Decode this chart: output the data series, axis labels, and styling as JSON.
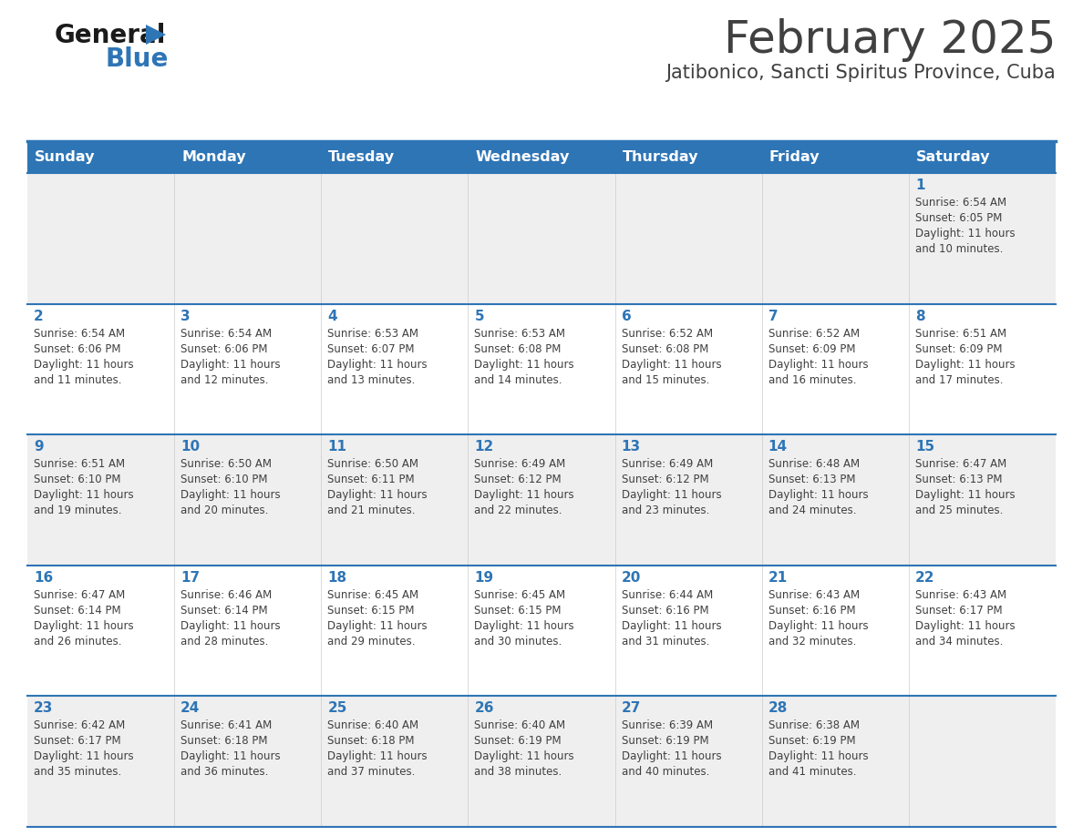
{
  "title": "February 2025",
  "subtitle": "Jatibonico, Sancti Spiritus Province, Cuba",
  "days_of_week": [
    "Sunday",
    "Monday",
    "Tuesday",
    "Wednesday",
    "Thursday",
    "Friday",
    "Saturday"
  ],
  "header_bg": "#2E75B6",
  "header_text_color": "#FFFFFF",
  "cell_bg_gray": "#EFEFEF",
  "cell_bg_white": "#FFFFFF",
  "border_color": "#2E75B6",
  "title_color": "#404040",
  "subtitle_color": "#404040",
  "day_number_color": "#2E75B6",
  "cell_text_color": "#404040",
  "logo_text_color": "#222222",
  "logo_blue_color": "#2E75B6",
  "calendar_data": [
    [
      null,
      null,
      null,
      null,
      null,
      null,
      {
        "day": 1,
        "sunrise": "6:54 AM",
        "sunset": "6:05 PM",
        "daylight_hrs": 11,
        "daylight_min": 10
      }
    ],
    [
      {
        "day": 2,
        "sunrise": "6:54 AM",
        "sunset": "6:06 PM",
        "daylight_hrs": 11,
        "daylight_min": 11
      },
      {
        "day": 3,
        "sunrise": "6:54 AM",
        "sunset": "6:06 PM",
        "daylight_hrs": 11,
        "daylight_min": 12
      },
      {
        "day": 4,
        "sunrise": "6:53 AM",
        "sunset": "6:07 PM",
        "daylight_hrs": 11,
        "daylight_min": 13
      },
      {
        "day": 5,
        "sunrise": "6:53 AM",
        "sunset": "6:08 PM",
        "daylight_hrs": 11,
        "daylight_min": 14
      },
      {
        "day": 6,
        "sunrise": "6:52 AM",
        "sunset": "6:08 PM",
        "daylight_hrs": 11,
        "daylight_min": 15
      },
      {
        "day": 7,
        "sunrise": "6:52 AM",
        "sunset": "6:09 PM",
        "daylight_hrs": 11,
        "daylight_min": 16
      },
      {
        "day": 8,
        "sunrise": "6:51 AM",
        "sunset": "6:09 PM",
        "daylight_hrs": 11,
        "daylight_min": 17
      }
    ],
    [
      {
        "day": 9,
        "sunrise": "6:51 AM",
        "sunset": "6:10 PM",
        "daylight_hrs": 11,
        "daylight_min": 19
      },
      {
        "day": 10,
        "sunrise": "6:50 AM",
        "sunset": "6:10 PM",
        "daylight_hrs": 11,
        "daylight_min": 20
      },
      {
        "day": 11,
        "sunrise": "6:50 AM",
        "sunset": "6:11 PM",
        "daylight_hrs": 11,
        "daylight_min": 21
      },
      {
        "day": 12,
        "sunrise": "6:49 AM",
        "sunset": "6:12 PM",
        "daylight_hrs": 11,
        "daylight_min": 22
      },
      {
        "day": 13,
        "sunrise": "6:49 AM",
        "sunset": "6:12 PM",
        "daylight_hrs": 11,
        "daylight_min": 23
      },
      {
        "day": 14,
        "sunrise": "6:48 AM",
        "sunset": "6:13 PM",
        "daylight_hrs": 11,
        "daylight_min": 24
      },
      {
        "day": 15,
        "sunrise": "6:47 AM",
        "sunset": "6:13 PM",
        "daylight_hrs": 11,
        "daylight_min": 25
      }
    ],
    [
      {
        "day": 16,
        "sunrise": "6:47 AM",
        "sunset": "6:14 PM",
        "daylight_hrs": 11,
        "daylight_min": 26
      },
      {
        "day": 17,
        "sunrise": "6:46 AM",
        "sunset": "6:14 PM",
        "daylight_hrs": 11,
        "daylight_min": 28
      },
      {
        "day": 18,
        "sunrise": "6:45 AM",
        "sunset": "6:15 PM",
        "daylight_hrs": 11,
        "daylight_min": 29
      },
      {
        "day": 19,
        "sunrise": "6:45 AM",
        "sunset": "6:15 PM",
        "daylight_hrs": 11,
        "daylight_min": 30
      },
      {
        "day": 20,
        "sunrise": "6:44 AM",
        "sunset": "6:16 PM",
        "daylight_hrs": 11,
        "daylight_min": 31
      },
      {
        "day": 21,
        "sunrise": "6:43 AM",
        "sunset": "6:16 PM",
        "daylight_hrs": 11,
        "daylight_min": 32
      },
      {
        "day": 22,
        "sunrise": "6:43 AM",
        "sunset": "6:17 PM",
        "daylight_hrs": 11,
        "daylight_min": 34
      }
    ],
    [
      {
        "day": 23,
        "sunrise": "6:42 AM",
        "sunset": "6:17 PM",
        "daylight_hrs": 11,
        "daylight_min": 35
      },
      {
        "day": 24,
        "sunrise": "6:41 AM",
        "sunset": "6:18 PM",
        "daylight_hrs": 11,
        "daylight_min": 36
      },
      {
        "day": 25,
        "sunrise": "6:40 AM",
        "sunset": "6:18 PM",
        "daylight_hrs": 11,
        "daylight_min": 37
      },
      {
        "day": 26,
        "sunrise": "6:40 AM",
        "sunset": "6:19 PM",
        "daylight_hrs": 11,
        "daylight_min": 38
      },
      {
        "day": 27,
        "sunrise": "6:39 AM",
        "sunset": "6:19 PM",
        "daylight_hrs": 11,
        "daylight_min": 40
      },
      {
        "day": 28,
        "sunrise": "6:38 AM",
        "sunset": "6:19 PM",
        "daylight_hrs": 11,
        "daylight_min": 41
      },
      null
    ]
  ]
}
